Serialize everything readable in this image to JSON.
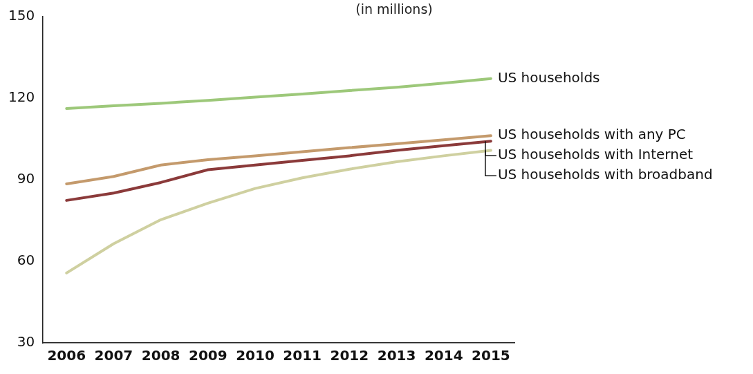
{
  "chart_data": {
    "type": "line",
    "subtitle": "(in millions)",
    "categories": [
      "2006",
      "2007",
      "2008",
      "2009",
      "2010",
      "2011",
      "2012",
      "2013",
      "2014",
      "2015"
    ],
    "ylim": [
      30,
      150
    ],
    "yticks": [
      30,
      60,
      90,
      120,
      150
    ],
    "grid": false,
    "legend": false,
    "marker": "none",
    "line_style": "solid",
    "series": [
      {
        "name": "US households",
        "color": "#9dc87a",
        "values": [
          116.2,
          117.2,
          118.1,
          119.2,
          120.4,
          121.5,
          122.8,
          124,
          125.5,
          127.2
        ]
      },
      {
        "name": "US households with any PC",
        "color": "#c49a6c",
        "values": [
          88.5,
          91.2,
          95.4,
          97.4,
          98.8,
          100.3,
          101.8,
          103.2,
          104.7,
          106.2
        ]
      },
      {
        "name": "US households with Internet",
        "color": "#8b3a3a",
        "values": [
          82.4,
          85.1,
          89,
          93.7,
          95.4,
          97.1,
          98.8,
          100.8,
          102.5,
          104.2
        ]
      },
      {
        "name": "US households with broadband",
        "color": "#cfd0a0",
        "values": [
          55.7,
          66.5,
          75.3,
          81.4,
          86.8,
          90.7,
          93.9,
          96.6,
          98.8,
          100.8
        ]
      }
    ]
  }
}
